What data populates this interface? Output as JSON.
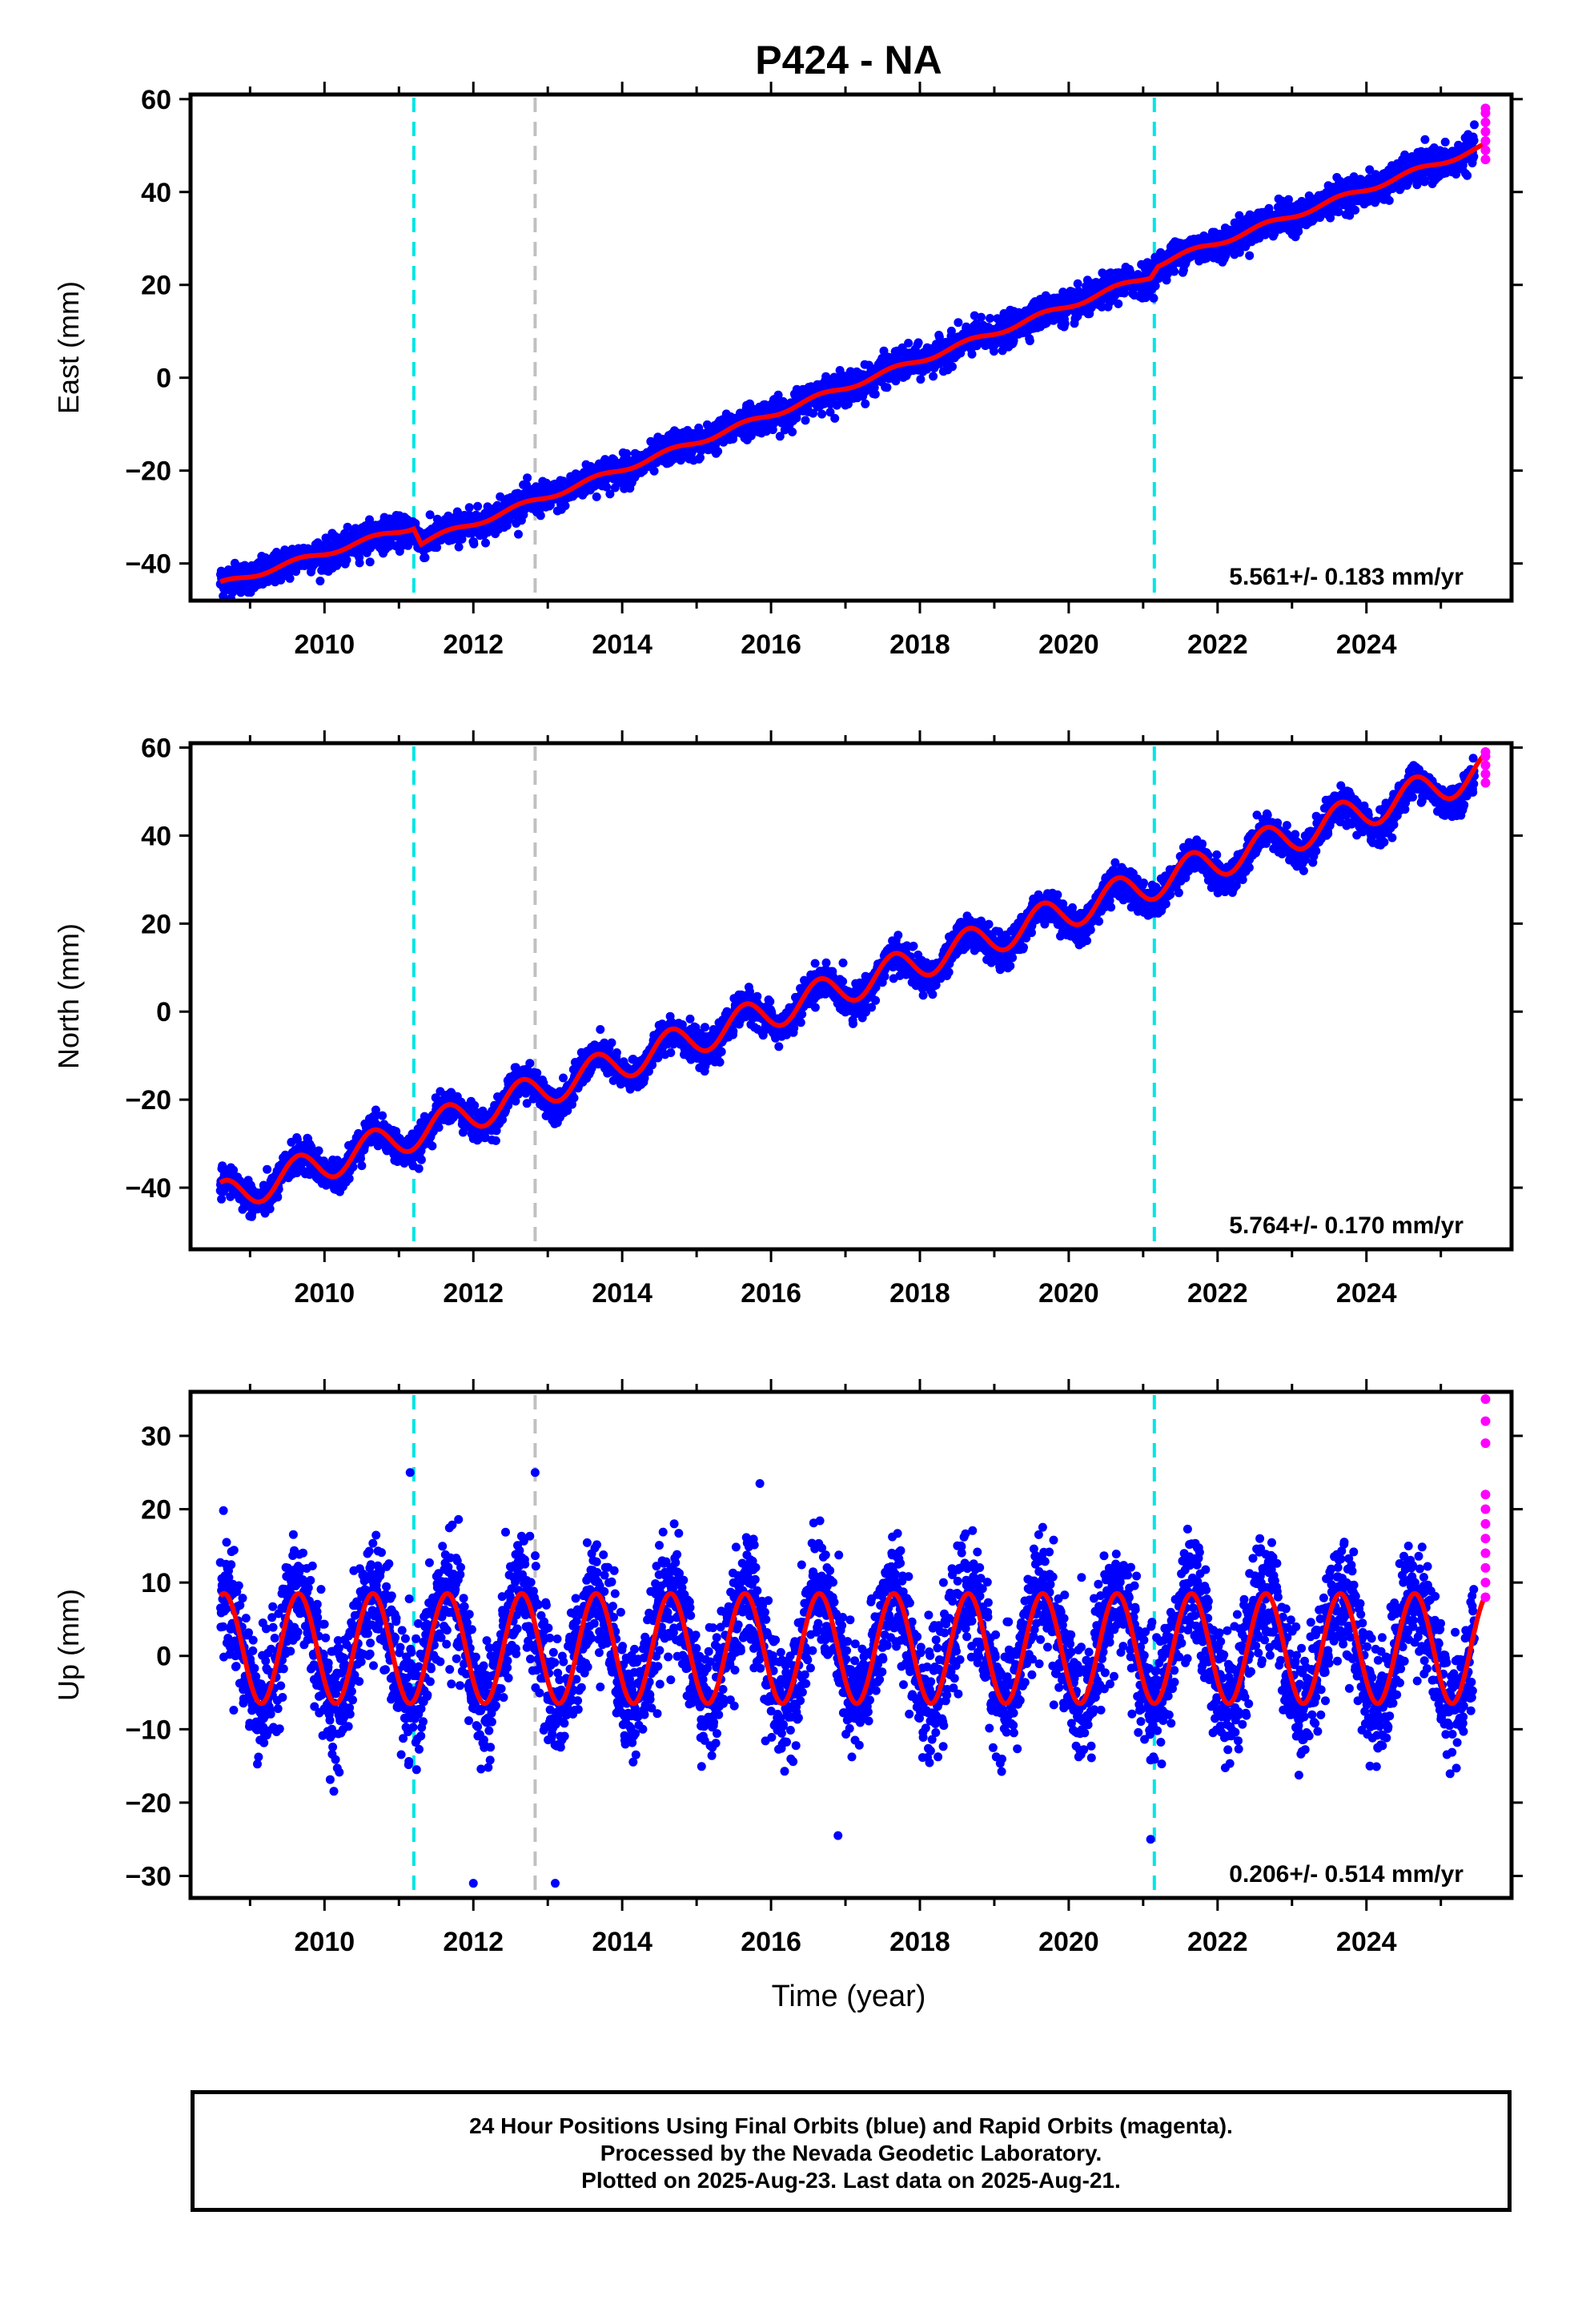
{
  "title": "P424 - NA",
  "xlabel": "Time (year)",
  "colors": {
    "final": "#0000ff",
    "rapid": "#ff00ff",
    "model": "#ff0000",
    "offset_antenna": "#00e5e5",
    "offset_other": "#c0c0c0"
  },
  "caption": [
    "24 Hour Positions Using Final Orbits (blue) and Rapid Orbits (magenta).",
    "Processed by the Nevada Geodetic Laboratory.",
    "Plotted on 2025-Aug-23. Last data on 2025-Aug-21."
  ],
  "chart_data": [
    {
      "type": "scatter",
      "ylabel": "East (mm)",
      "rate_label": "5.561+/- 0.183 mm/yr",
      "rate": 5.561,
      "xlim": [
        2008.2,
        2025.95
      ],
      "ylim": [
        -48,
        61
      ],
      "xticks": [
        "2010",
        "2012",
        "2014",
        "2016",
        "2018",
        "2020",
        "2022",
        "2024"
      ],
      "xtick_values": [
        2010,
        2012,
        2014,
        2016,
        2018,
        2020,
        2022,
        2024
      ],
      "yticks": [
        -40,
        -20,
        0,
        20,
        40,
        60
      ],
      "yticklabels": [
        "−40",
        "−20",
        "0",
        "20",
        "40",
        "60"
      ],
      "series_final": {
        "start": 2008.6,
        "end": 2025.45,
        "y_start": -44.5,
        "y_end": 48.5,
        "seasonal_amplitude": 0.6,
        "noise": 1.6
      },
      "model_knots": {
        "x": [
          2008.6,
          2011.2,
          2011.3,
          2021.1,
          2021.2,
          2025.62
        ],
        "y": [
          -44.5,
          -32.0,
          -35.5,
          22.0,
          24.5,
          50.0
        ]
      },
      "rapid_points": {
        "x": 2025.6,
        "y": [
          47,
          49,
          51,
          53,
          55,
          57,
          58
        ]
      },
      "vlines": [
        {
          "x": 2011.2,
          "kind": "antenna"
        },
        {
          "x": 2012.83,
          "kind": "other"
        },
        {
          "x": 2021.15,
          "kind": "antenna"
        }
      ]
    },
    {
      "type": "scatter",
      "ylabel": "North (mm)",
      "rate_label": "5.764+/- 0.170 mm/yr",
      "rate": 5.764,
      "xlim": [
        2008.2,
        2025.95
      ],
      "ylim": [
        -54,
        61
      ],
      "xticks": [
        "2010",
        "2012",
        "2014",
        "2016",
        "2018",
        "2020",
        "2022",
        "2024"
      ],
      "xtick_values": [
        2010,
        2012,
        2014,
        2016,
        2018,
        2020,
        2022,
        2024
      ],
      "yticks": [
        -40,
        -20,
        0,
        20,
        40,
        60
      ],
      "yticklabels": [
        "−40",
        "−20",
        "0",
        "20",
        "40",
        "60"
      ],
      "series_final": {
        "start": 2008.6,
        "end": 2025.45,
        "y_start": -42.5,
        "y_end": 53.0,
        "seasonal_amplitude": 3.8,
        "noise": 1.8
      },
      "model_knots": {
        "x": [
          2008.6,
          2025.62
        ],
        "y": [
          -42.5,
          55.0
        ]
      },
      "rapid_points": {
        "x": 2025.6,
        "y": [
          52,
          54,
          56,
          58,
          59
        ]
      },
      "vlines": [
        {
          "x": 2011.2,
          "kind": "antenna"
        },
        {
          "x": 2012.83,
          "kind": "other"
        },
        {
          "x": 2021.15,
          "kind": "antenna"
        }
      ]
    },
    {
      "type": "scatter",
      "ylabel": "Up (mm)",
      "rate_label": "0.206+/- 0.514 mm/yr",
      "rate": 0.206,
      "xlim": [
        2008.2,
        2025.95
      ],
      "ylim": [
        -33,
        36
      ],
      "xticks": [
        "2010",
        "2012",
        "2014",
        "2016",
        "2018",
        "2020",
        "2022",
        "2024"
      ],
      "xtick_values": [
        2010,
        2012,
        2014,
        2016,
        2018,
        2020,
        2022,
        2024
      ],
      "yticks": [
        -30,
        -20,
        -10,
        0,
        10,
        20,
        30
      ],
      "yticklabels": [
        "−30",
        "−20",
        "−10",
        "0",
        "10",
        "20",
        "30"
      ],
      "series_final": {
        "start": 2008.6,
        "end": 2025.45,
        "y_start": 1.0,
        "y_end": 1.0,
        "seasonal_amplitude": 7.5,
        "noise": 4.0
      },
      "model_knots": {
        "x": [
          2008.6,
          2025.62
        ],
        "y": [
          1.0,
          1.0
        ]
      },
      "rapid_points": {
        "x": 2025.6,
        "y": [
          8,
          10,
          12,
          14,
          16,
          18,
          20,
          22,
          29,
          32,
          35
        ]
      },
      "outliers": {
        "x": [
          2011.15,
          2012.83,
          2015.85,
          2012.0,
          2013.1,
          2021.1,
          2016.9
        ],
        "y": [
          25,
          25,
          23.5,
          -31,
          -31,
          -25,
          -24.5
        ]
      },
      "vlines": [
        {
          "x": 2011.2,
          "kind": "antenna"
        },
        {
          "x": 2012.83,
          "kind": "other"
        },
        {
          "x": 2021.15,
          "kind": "antenna"
        }
      ]
    }
  ]
}
